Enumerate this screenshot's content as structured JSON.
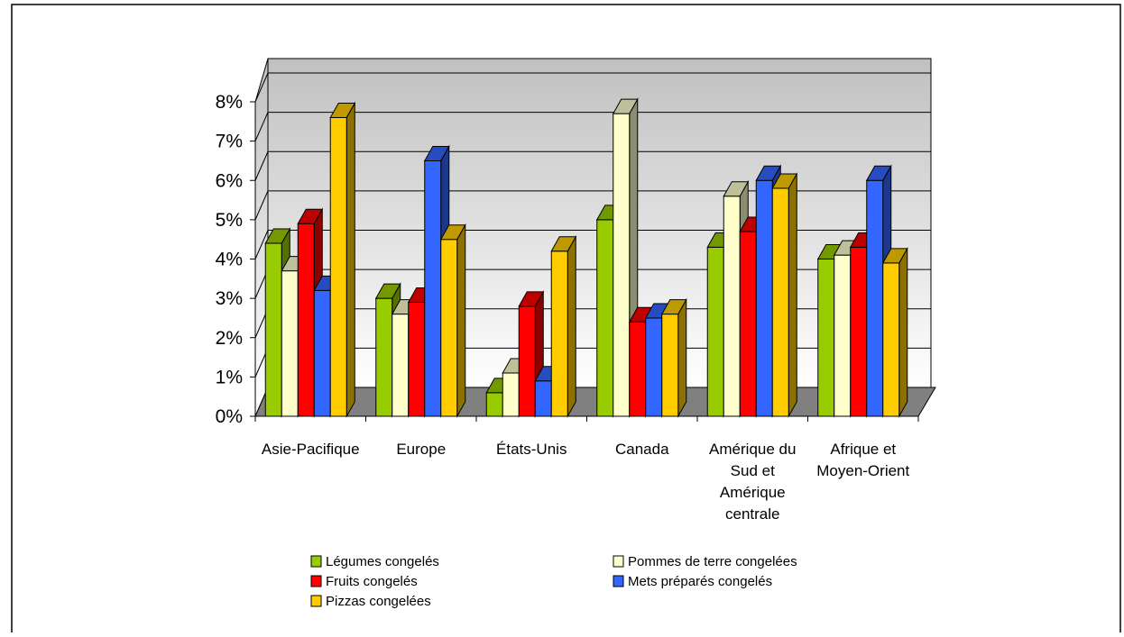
{
  "chart_data": {
    "type": "bar",
    "title": "",
    "xlabel": "",
    "ylabel": "",
    "ylim": [
      0,
      8
    ],
    "y_ticks": [
      "0%",
      "1%",
      "2%",
      "3%",
      "4%",
      "5%",
      "6%",
      "7%",
      "8%"
    ],
    "grid": true,
    "legend_position": "bottom",
    "categories": [
      [
        "Asie-Pacifique"
      ],
      [
        "Europe"
      ],
      [
        "États-Unis"
      ],
      [
        "Canada"
      ],
      [
        "Amérique du",
        "Sud et",
        "Amérique",
        "centrale"
      ],
      [
        "Afrique et",
        "Moyen-Orient"
      ]
    ],
    "series": [
      {
        "name": "Légumes congelés",
        "color": "#99cc00",
        "values": [
          4.4,
          3.0,
          0.6,
          5.0,
          4.3,
          4.0
        ]
      },
      {
        "name": "Pommes de terre congelées",
        "color": "#ffffcc",
        "values": [
          3.7,
          2.6,
          1.1,
          7.7,
          5.6,
          4.1
        ]
      },
      {
        "name": "Fruits congelés",
        "color": "#ff0000",
        "values": [
          4.9,
          2.9,
          2.8,
          2.4,
          4.7,
          4.3
        ]
      },
      {
        "name": "Mets préparés congelés",
        "color": "#3366ff",
        "values": [
          3.2,
          6.5,
          0.9,
          2.5,
          6.0,
          6.0
        ]
      },
      {
        "name": "Pizzas congelées",
        "color": "#ffcc00",
        "values": [
          7.6,
          4.5,
          4.2,
          2.6,
          5.8,
          3.9
        ]
      }
    ]
  }
}
